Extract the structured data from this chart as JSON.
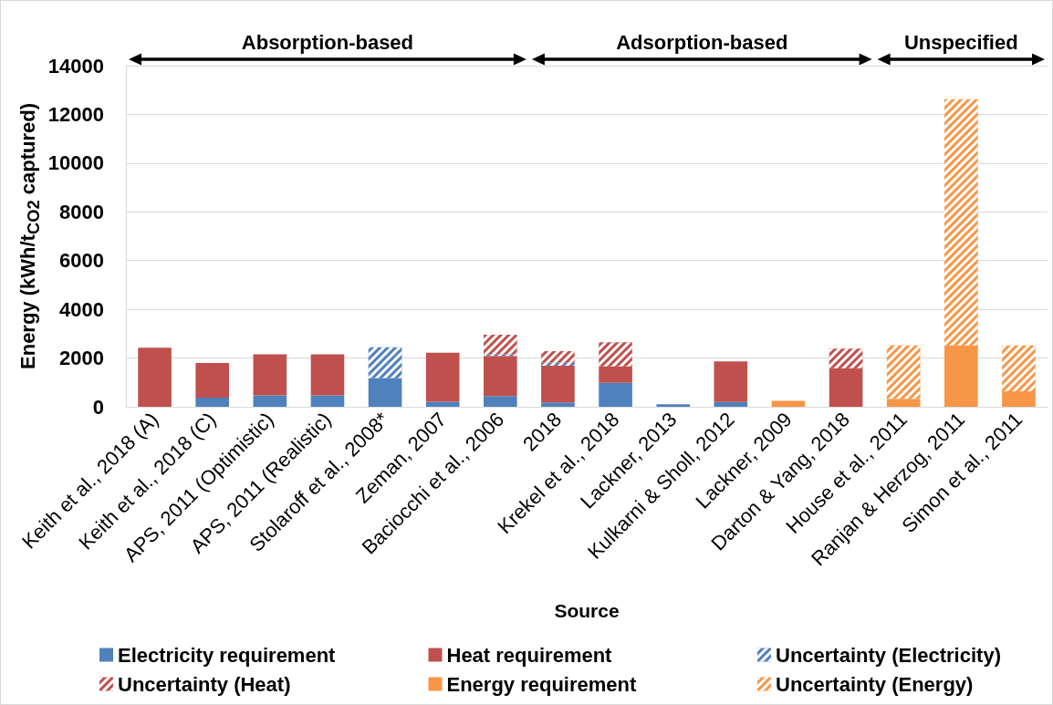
{
  "chart_data": {
    "type": "bar",
    "stacked": true,
    "xlabel": "Source",
    "ylabel": "Energy (kWh/t$_{CO2}$ captured)",
    "categories": [
      "Keith et al., 2018 (A)",
      "Keith et al., 2018 (C)",
      "APS, 2011 (Optimistic)",
      "APS, 2011 (Realistic)",
      "Stolaroff et al., 2008*",
      "Zeman, 2007",
      "Baciocchi et al., 2006",
      "2018",
      "Krekel et al., 2018",
      "Lackner, 2013",
      "Kulkarni & Sholl, 2012",
      "Lackner, 2009",
      "Darton & Yang, 2018",
      "House et al., 2011",
      "Ranjan & Herzog, 2011",
      "Simon et al., 2011"
    ],
    "series": [
      {
        "name": "Electricity requirement",
        "color": "#4f81bd",
        "values": [
          null,
          370,
          470,
          470,
          1180,
          210,
          440,
          180,
          980,
          100,
          200,
          null,
          null,
          null,
          null,
          null
        ]
      },
      {
        "name": "Heat requirement",
        "color": "#c0504d",
        "values": [
          2420,
          1430,
          1680,
          1680,
          null,
          2010,
          1650,
          1500,
          680,
          null,
          1660,
          null,
          1580,
          null,
          null,
          null
        ]
      },
      {
        "name": "Uncertainty (Electricity)",
        "color": "#4f81bd",
        "values": [
          null,
          null,
          null,
          null,
          1260,
          null,
          60,
          130,
          null,
          null,
          null,
          null,
          null,
          null,
          null,
          null
        ]
      },
      {
        "name": "Uncertainty (Heat)",
        "color": "#c0504d",
        "values": [
          null,
          null,
          null,
          null,
          null,
          null,
          810,
          470,
          990,
          null,
          null,
          null,
          810,
          null,
          null,
          null
        ]
      },
      {
        "name": "Energy requirement",
        "color": "#f79646",
        "values": [
          null,
          null,
          null,
          null,
          null,
          null,
          null,
          null,
          null,
          null,
          null,
          240,
          null,
          330,
          2520,
          640
        ]
      },
      {
        "name": "Uncertainty (Energy)",
        "color": "#f79646",
        "values": [
          null,
          null,
          null,
          null,
          null,
          null,
          null,
          null,
          null,
          null,
          null,
          null,
          null,
          2190,
          10100,
          1880
        ]
      }
    ],
    "ylim": [
      0,
      14000
    ],
    "yticks": [
      0,
      2000,
      4000,
      6000,
      8000,
      10000,
      12000,
      14000
    ],
    "grid": "y",
    "legend": "bottom",
    "annotations": [
      "Absorption-based",
      "Adsorption-based",
      "Unspecified"
    ]
  }
}
